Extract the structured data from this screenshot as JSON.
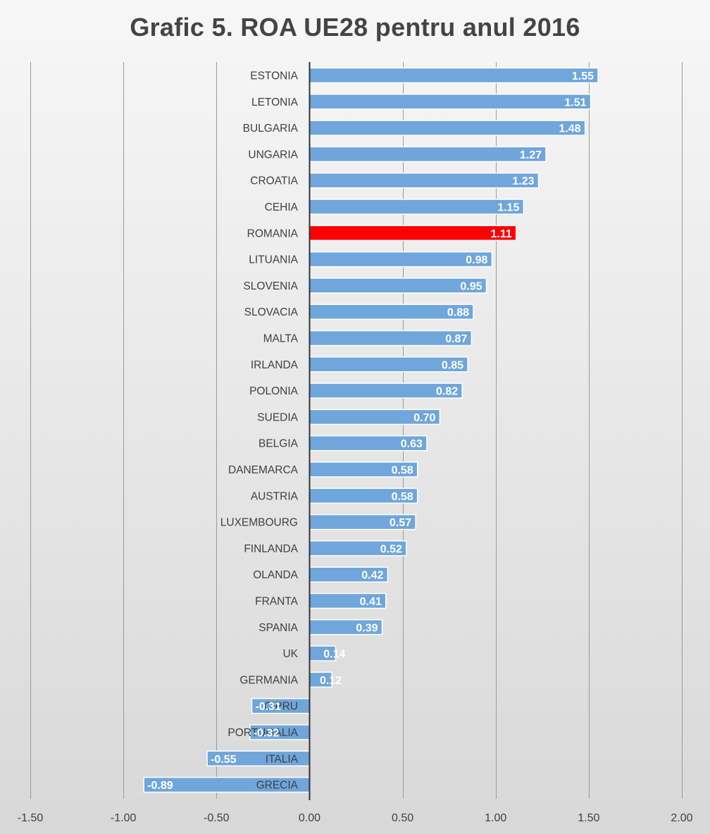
{
  "chart_data": {
    "type": "bar",
    "orientation": "horizontal",
    "title": "Grafic 5. ROA UE28 pentru anul 2016",
    "xlabel": "",
    "ylabel": "",
    "xlim": [
      -1.5,
      2.0
    ],
    "ticks": [
      -1.5,
      -1.0,
      -0.5,
      0.0,
      0.5,
      1.0,
      1.5,
      2.0
    ],
    "tick_labels": [
      "-1.50",
      "-1.00",
      "-0.50",
      "0.00",
      "0.50",
      "1.00",
      "1.50",
      "2.00"
    ],
    "grid": true,
    "legend": "none",
    "colors": {
      "bar": "#6fa6dc",
      "highlight": "#ff0000",
      "highlight_category": "ROMANIA"
    },
    "categories": [
      "ESTONIA",
      "LETONIA",
      "BULGARIA",
      "UNGARIA",
      "CROATIA",
      "CEHIA",
      "ROMANIA",
      "LITUANIA",
      "SLOVENIA",
      "SLOVACIA",
      "MALTA",
      "IRLANDA",
      "POLONIA",
      "SUEDIA",
      "BELGIA",
      "DANEMARCA",
      "AUSTRIA",
      "LUXEMBOURG",
      "FINLANDA",
      "OLANDA",
      "FRANTA",
      "SPANIA",
      "UK",
      "GERMANIA",
      "CIPRU",
      "PORTUGALIA",
      "ITALIA",
      "GRECIA"
    ],
    "values": [
      1.55,
      1.51,
      1.48,
      1.27,
      1.23,
      1.15,
      1.11,
      0.98,
      0.95,
      0.88,
      0.87,
      0.85,
      0.82,
      0.7,
      0.63,
      0.58,
      0.58,
      0.57,
      0.52,
      0.42,
      0.41,
      0.39,
      0.14,
      0.12,
      -0.31,
      -0.32,
      -0.55,
      -0.89
    ],
    "value_labels": [
      "1.55",
      "1.51",
      "1.48",
      "1.27",
      "1.23",
      "1.15",
      "1.11",
      "0.98",
      "0.95",
      "0.88",
      "0.87",
      "0.85",
      "0.82",
      "0.70",
      "0.63",
      "0.58",
      "0.58",
      "0.57",
      "0.52",
      "0.42",
      "0.41",
      "0.39",
      "0.14",
      "0.12",
      "-0.31",
      "-0.32",
      "-0.55",
      "-0.89"
    ]
  }
}
